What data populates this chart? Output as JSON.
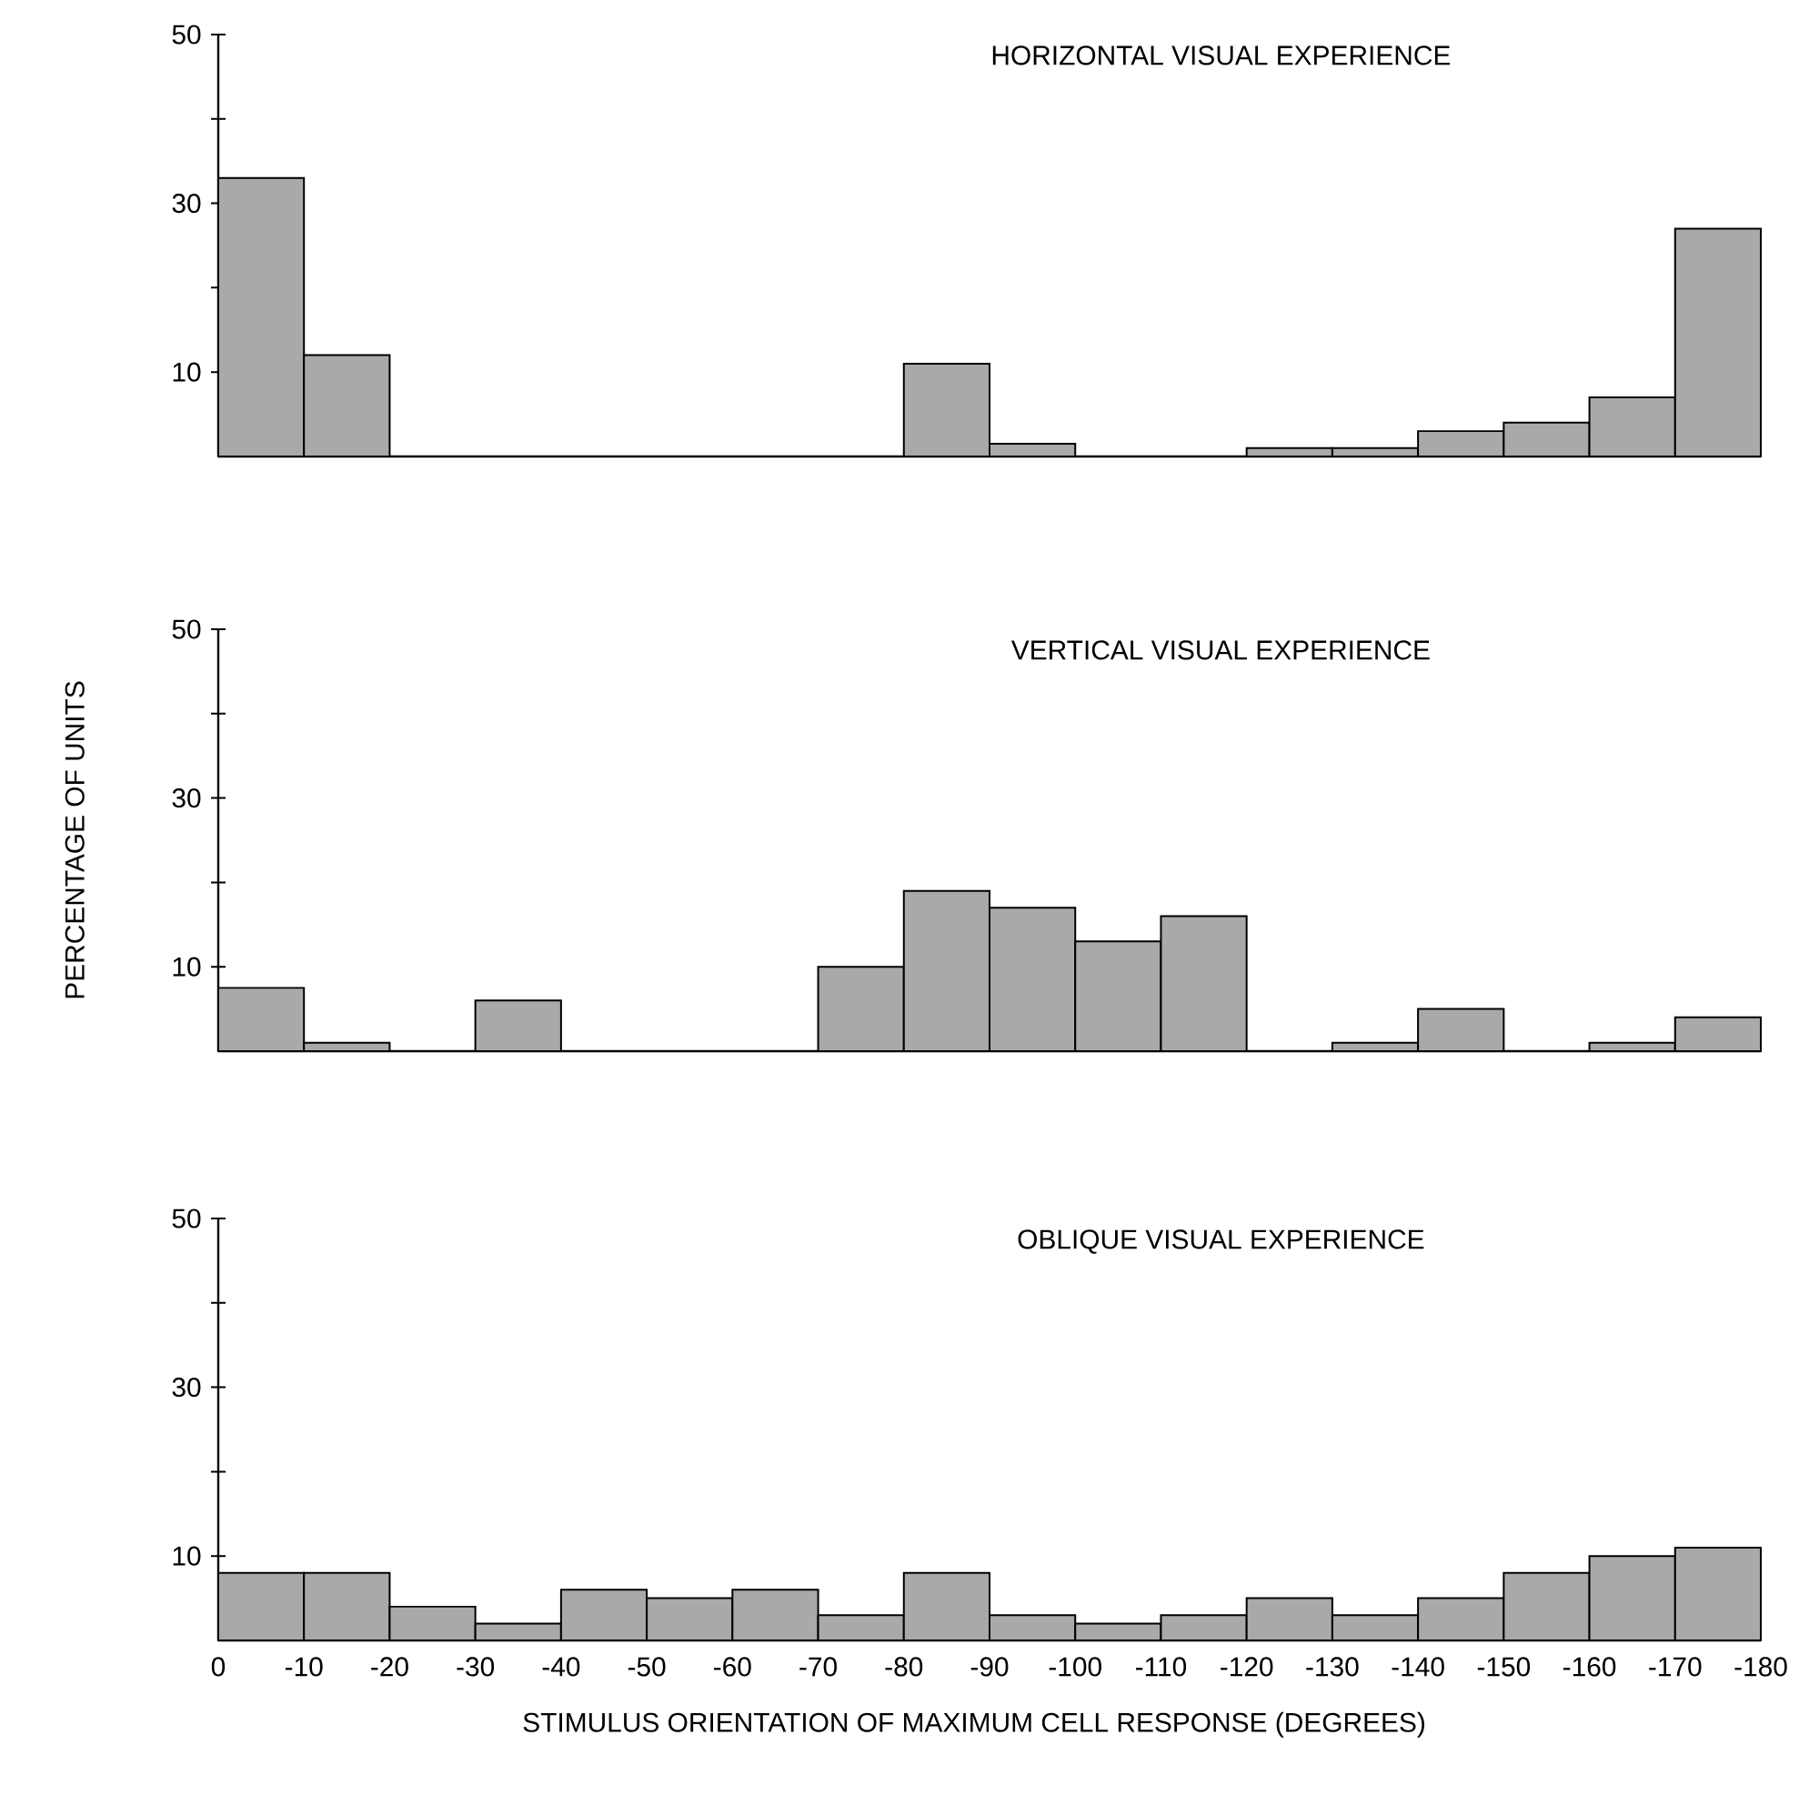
{
  "chart_data": [
    {
      "type": "histogram",
      "title": "HORIZONTAL VISUAL EXPERIENCE",
      "bins": [
        0,
        -10,
        -20,
        -30,
        -40,
        -50,
        -60,
        -70,
        -80,
        -90,
        -100,
        -110,
        -120,
        -130,
        -140,
        -150,
        -160,
        -170,
        -180
      ],
      "values": [
        33,
        12,
        0,
        0,
        0,
        0,
        0,
        0,
        11,
        1.5,
        0,
        0,
        1,
        1,
        3,
        4,
        7,
        27
      ],
      "color": "#a9a9a9",
      "xlim": [
        0,
        -180
      ],
      "ylim": [
        0,
        50
      ],
      "xticks": [
        0,
        -10,
        -20,
        -30,
        -40,
        -50,
        -60,
        -70,
        -80,
        -90,
        -100,
        -110,
        -120,
        -130,
        -140,
        -150,
        -160,
        -170,
        -180
      ],
      "yticks": [
        {
          "value": 10,
          "label": "10"
        },
        {
          "value": 20,
          "label": null
        },
        {
          "value": 30,
          "label": "30"
        },
        {
          "value": 40,
          "label": null
        },
        {
          "value": 50,
          "label": "50"
        }
      ],
      "tick_labels": "y"
    },
    {
      "type": "histogram",
      "title": "VERTICAL VISUAL EXPERIENCE",
      "ylabel": "PERCENTAGE OF UNITS",
      "bins": [
        0,
        -10,
        -20,
        -30,
        -40,
        -50,
        -60,
        -70,
        -80,
        -90,
        -100,
        -110,
        -120,
        -130,
        -140,
        -150,
        -160,
        -170,
        -180
      ],
      "values": [
        7.5,
        1,
        0,
        6,
        0,
        0,
        0,
        10,
        19,
        17,
        13,
        16,
        0,
        1,
        5,
        0,
        1,
        4
      ],
      "color": "#a9a9a9",
      "xlim": [
        0,
        -180
      ],
      "ylim": [
        0,
        50
      ],
      "xticks": [
        0,
        -10,
        -20,
        -30,
        -40,
        -50,
        -60,
        -70,
        -80,
        -90,
        -100,
        -110,
        -120,
        -130,
        -140,
        -150,
        -160,
        -170,
        -180
      ],
      "yticks": [
        {
          "value": 10,
          "label": "10"
        },
        {
          "value": 20,
          "label": null
        },
        {
          "value": 30,
          "label": "30"
        },
        {
          "value": 40,
          "label": null
        },
        {
          "value": 50,
          "label": "50"
        }
      ],
      "tick_labels": "y"
    },
    {
      "type": "histogram",
      "title": "OBLIQUE VISUAL EXPERIENCE",
      "xlabel": "STIMULUS ORIENTATION OF MAXIMUM CELL RESPONSE (DEGREES)",
      "bins": [
        0,
        -10,
        -20,
        -30,
        -40,
        -50,
        -60,
        -70,
        -80,
        -90,
        -100,
        -110,
        -120,
        -130,
        -140,
        -150,
        -160,
        -170,
        -180
      ],
      "values": [
        8,
        8,
        4,
        2,
        6,
        5,
        6,
        3,
        8,
        3,
        2,
        3,
        5,
        3,
        5,
        8,
        10,
        11
      ],
      "color": "#a9a9a9",
      "xlim": [
        0,
        -180
      ],
      "ylim": [
        0,
        50
      ],
      "xticks": [
        0,
        -10,
        -20,
        -30,
        -40,
        -50,
        -60,
        -70,
        -80,
        -90,
        -100,
        -110,
        -120,
        -130,
        -140,
        -150,
        -160,
        -170,
        -180
      ],
      "yticks": [
        {
          "value": 10,
          "label": "10"
        },
        {
          "value": 20,
          "label": null
        },
        {
          "value": 30,
          "label": "30"
        },
        {
          "value": 40,
          "label": null
        },
        {
          "value": 50,
          "label": "50"
        }
      ]
    }
  ]
}
